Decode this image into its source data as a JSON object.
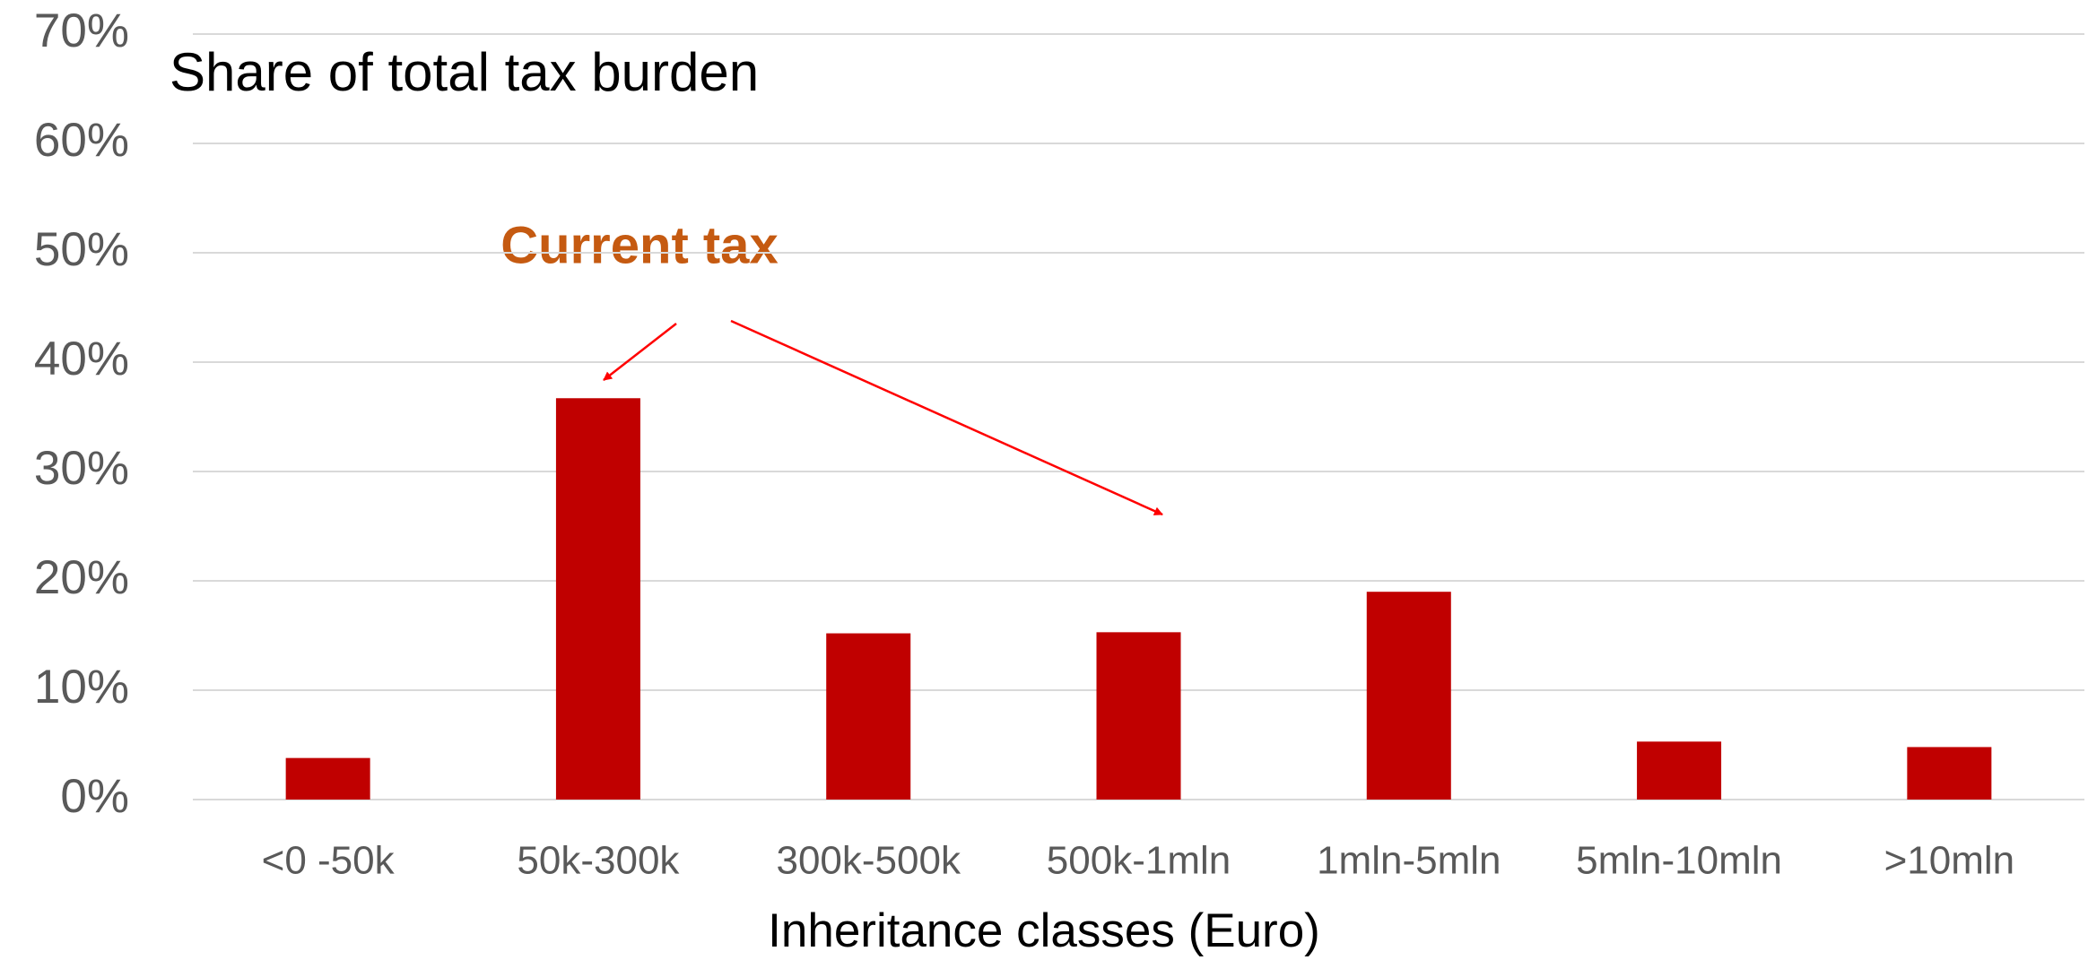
{
  "chart_data": {
    "type": "bar",
    "title": "Share of total tax burden",
    "x_label": "Inheritance classes (Euro)",
    "annotation": "Current tax",
    "categories": [
      "<0 -50k",
      "50k-300k",
      "300k-500k",
      "500k-1mln",
      "1mln-5mln",
      "5mln-10mln",
      ">10mln"
    ],
    "values": [
      3.8,
      36.7,
      15.2,
      15.3,
      19.0,
      5.3,
      4.8
    ],
    "color": "#c00000",
    "ylim": [
      0,
      70
    ],
    "yticks": [
      {
        "value": 0,
        "label": "0%"
      },
      {
        "value": 10,
        "label": "10%"
      },
      {
        "value": 20,
        "label": "20%"
      },
      {
        "value": 30,
        "label": "30%"
      },
      {
        "value": 40,
        "label": "40%"
      },
      {
        "value": 50,
        "label": "50%"
      },
      {
        "value": 60,
        "label": "60%"
      },
      {
        "value": 70,
        "label": "70%"
      }
    ],
    "grid": true
  }
}
